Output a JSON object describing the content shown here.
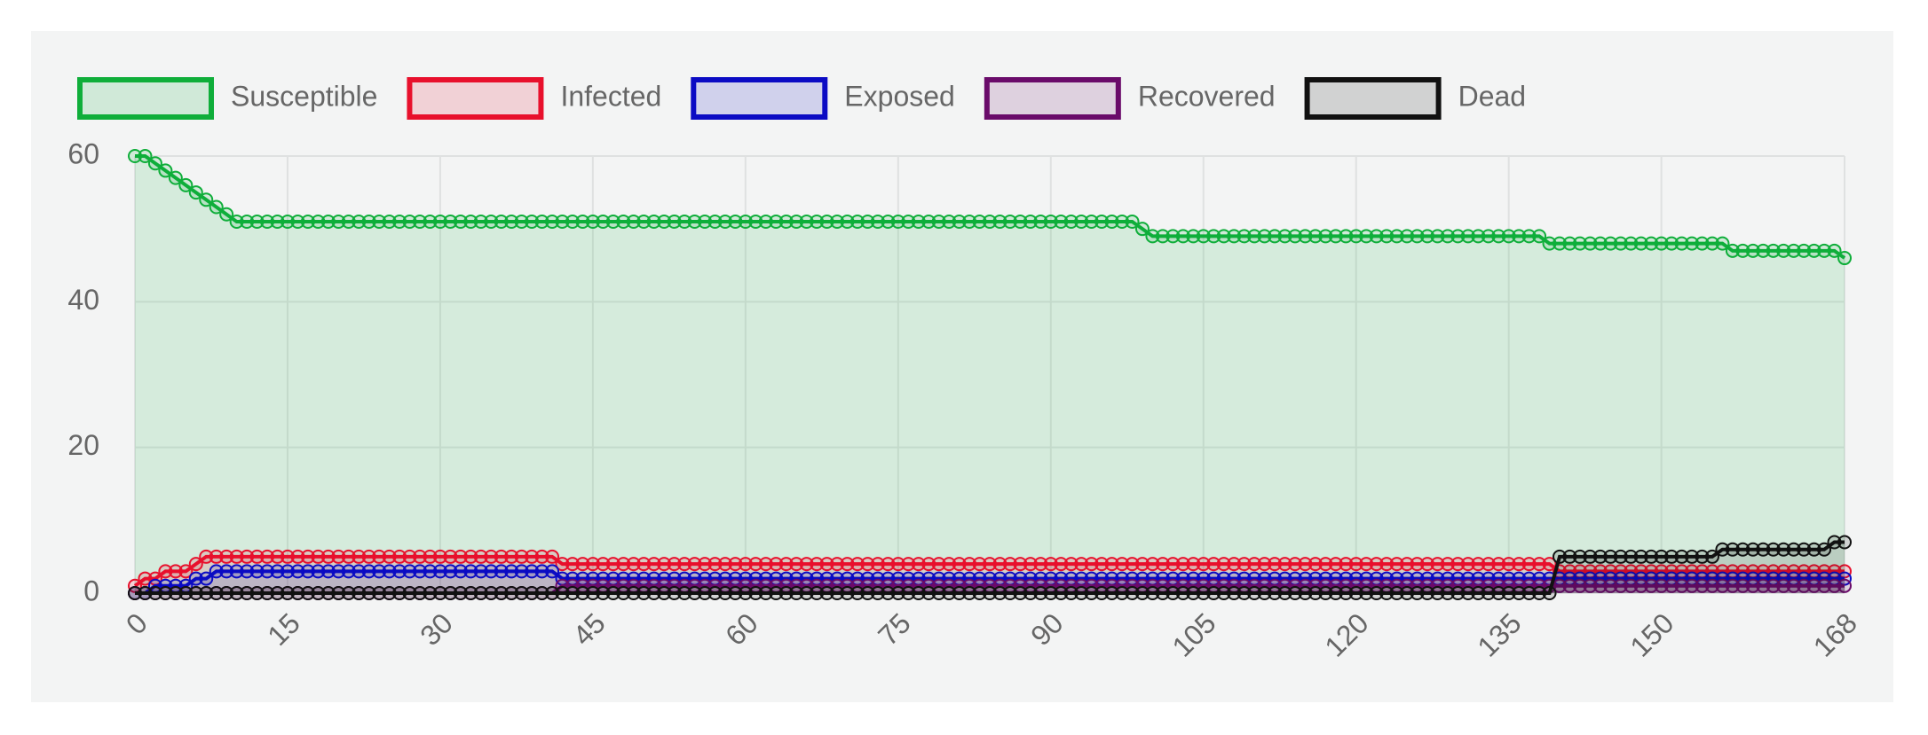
{
  "chart_data": {
    "type": "line",
    "x": [
      0,
      1,
      2,
      3,
      4,
      5,
      6,
      7,
      8,
      9,
      10,
      11,
      12,
      13,
      14,
      15,
      16,
      17,
      18,
      19,
      20,
      21,
      22,
      23,
      24,
      25,
      26,
      27,
      28,
      29,
      30,
      31,
      32,
      33,
      34,
      35,
      36,
      37,
      38,
      39,
      40,
      41,
      42,
      43,
      44,
      45,
      46,
      47,
      48,
      49,
      50,
      51,
      52,
      53,
      54,
      55,
      56,
      57,
      58,
      59,
      60,
      61,
      62,
      63,
      64,
      65,
      66,
      67,
      68,
      69,
      70,
      71,
      72,
      73,
      74,
      75,
      76,
      77,
      78,
      79,
      80,
      81,
      82,
      83,
      84,
      85,
      86,
      87,
      88,
      89,
      90,
      91,
      92,
      93,
      94,
      95,
      96,
      97,
      98,
      99,
      100,
      101,
      102,
      103,
      104,
      105,
      106,
      107,
      108,
      109,
      110,
      111,
      112,
      113,
      114,
      115,
      116,
      117,
      118,
      119,
      120,
      121,
      122,
      123,
      124,
      125,
      126,
      127,
      128,
      129,
      130,
      131,
      132,
      133,
      134,
      135,
      136,
      137,
      138,
      139,
      140,
      141,
      142,
      143,
      144,
      145,
      146,
      147,
      148,
      149,
      150,
      151,
      152,
      153,
      154,
      155,
      156,
      157,
      158,
      159,
      160,
      161,
      162,
      163,
      164,
      165,
      166,
      167,
      168
    ],
    "series": [
      {
        "name": "Susceptible",
        "color": "#0fae3a",
        "values": [
          60,
          60,
          59,
          58,
          57,
          56,
          55,
          54,
          53,
          52,
          51,
          51,
          51,
          51,
          51,
          51,
          51,
          51,
          51,
          51,
          51,
          51,
          51,
          51,
          51,
          51,
          51,
          51,
          51,
          51,
          51,
          51,
          51,
          51,
          51,
          51,
          51,
          51,
          51,
          51,
          51,
          51,
          51,
          51,
          51,
          51,
          51,
          51,
          51,
          51,
          51,
          51,
          51,
          51,
          51,
          51,
          51,
          51,
          51,
          51,
          51,
          51,
          51,
          51,
          51,
          51,
          51,
          51,
          51,
          51,
          51,
          51,
          51,
          51,
          51,
          51,
          51,
          51,
          51,
          51,
          51,
          51,
          51,
          51,
          51,
          51,
          51,
          51,
          51,
          51,
          51,
          51,
          51,
          51,
          51,
          51,
          51,
          51,
          51,
          50,
          49,
          49,
          49,
          49,
          49,
          49,
          49,
          49,
          49,
          49,
          49,
          49,
          49,
          49,
          49,
          49,
          49,
          49,
          49,
          49,
          49,
          49,
          49,
          49,
          49,
          49,
          49,
          49,
          49,
          49,
          49,
          49,
          49,
          49,
          49,
          49,
          49,
          49,
          49,
          48,
          48,
          48,
          48,
          48,
          48,
          48,
          48,
          48,
          48,
          48,
          48,
          48,
          48,
          48,
          48,
          48,
          48,
          47,
          47,
          47,
          47,
          47,
          47,
          47,
          47,
          47,
          47,
          47,
          46
        ]
      },
      {
        "name": "Infected",
        "color": "#e8102c",
        "values": [
          1,
          2,
          2,
          3,
          3,
          3,
          4,
          5,
          5,
          5,
          5,
          5,
          5,
          5,
          5,
          5,
          5,
          5,
          5,
          5,
          5,
          5,
          5,
          5,
          5,
          5,
          5,
          5,
          5,
          5,
          5,
          5,
          5,
          5,
          5,
          5,
          5,
          5,
          5,
          5,
          5,
          5,
          4,
          4,
          4,
          4,
          4,
          4,
          4,
          4,
          4,
          4,
          4,
          4,
          4,
          4,
          4,
          4,
          4,
          4,
          4,
          4,
          4,
          4,
          4,
          4,
          4,
          4,
          4,
          4,
          4,
          4,
          4,
          4,
          4,
          4,
          4,
          4,
          4,
          4,
          4,
          4,
          4,
          4,
          4,
          4,
          4,
          4,
          4,
          4,
          4,
          4,
          4,
          4,
          4,
          4,
          4,
          4,
          4,
          4,
          4,
          4,
          4,
          4,
          4,
          4,
          4,
          4,
          4,
          4,
          4,
          4,
          4,
          4,
          4,
          4,
          4,
          4,
          4,
          4,
          4,
          4,
          4,
          4,
          4,
          4,
          4,
          4,
          4,
          4,
          4,
          4,
          4,
          4,
          4,
          4,
          4,
          4,
          4,
          4,
          3,
          3,
          3,
          3,
          3,
          3,
          3,
          3,
          3,
          3,
          3,
          3,
          3,
          3,
          3,
          3,
          3,
          3,
          3,
          3,
          3,
          3,
          3,
          3,
          3,
          3,
          3,
          3,
          3
        ]
      },
      {
        "name": "Exposed",
        "color": "#0b0bc4",
        "values": [
          0,
          0,
          1,
          1,
          1,
          1,
          2,
          2,
          3,
          3,
          3,
          3,
          3,
          3,
          3,
          3,
          3,
          3,
          3,
          3,
          3,
          3,
          3,
          3,
          3,
          3,
          3,
          3,
          3,
          3,
          3,
          3,
          3,
          3,
          3,
          3,
          3,
          3,
          3,
          3,
          3,
          3,
          2,
          2,
          2,
          2,
          2,
          2,
          2,
          2,
          2,
          2,
          2,
          2,
          2,
          2,
          2,
          2,
          2,
          2,
          2,
          2,
          2,
          2,
          2,
          2,
          2,
          2,
          2,
          2,
          2,
          2,
          2,
          2,
          2,
          2,
          2,
          2,
          2,
          2,
          2,
          2,
          2,
          2,
          2,
          2,
          2,
          2,
          2,
          2,
          2,
          2,
          2,
          2,
          2,
          2,
          2,
          2,
          2,
          2,
          2,
          2,
          2,
          2,
          2,
          2,
          2,
          2,
          2,
          2,
          2,
          2,
          2,
          2,
          2,
          2,
          2,
          2,
          2,
          2,
          2,
          2,
          2,
          2,
          2,
          2,
          2,
          2,
          2,
          2,
          2,
          2,
          2,
          2,
          2,
          2,
          2,
          2,
          2,
          2,
          2,
          2,
          2,
          2,
          2,
          2,
          2,
          2,
          2,
          2,
          2,
          2,
          2,
          2,
          2,
          2,
          2,
          2,
          2,
          2,
          2,
          2,
          2,
          2,
          2,
          2,
          2,
          2,
          2
        ]
      },
      {
        "name": "Recovered",
        "color": "#6a0b6a",
        "values": [
          0,
          0,
          0,
          0,
          0,
          0,
          0,
          0,
          0,
          0,
          0,
          0,
          0,
          0,
          0,
          0,
          0,
          0,
          0,
          0,
          0,
          0,
          0,
          0,
          0,
          0,
          0,
          0,
          0,
          0,
          0,
          0,
          0,
          0,
          0,
          0,
          0,
          0,
          0,
          0,
          0,
          0,
          1,
          1,
          1,
          1,
          1,
          1,
          1,
          1,
          1,
          1,
          1,
          1,
          1,
          1,
          1,
          1,
          1,
          1,
          1,
          1,
          1,
          1,
          1,
          1,
          1,
          1,
          1,
          1,
          1,
          1,
          1,
          1,
          1,
          1,
          1,
          1,
          1,
          1,
          1,
          1,
          1,
          1,
          1,
          1,
          1,
          1,
          1,
          1,
          1,
          1,
          1,
          1,
          1,
          1,
          1,
          1,
          1,
          1,
          1,
          1,
          1,
          1,
          1,
          1,
          1,
          1,
          1,
          1,
          1,
          1,
          1,
          1,
          1,
          1,
          1,
          1,
          1,
          1,
          1,
          1,
          1,
          1,
          1,
          1,
          1,
          1,
          1,
          1,
          1,
          1,
          1,
          1,
          1,
          1,
          1,
          1,
          1,
          1,
          1,
          1,
          1,
          1,
          1,
          1,
          1,
          1,
          1,
          1,
          1,
          1,
          1,
          1,
          1,
          1,
          1,
          1,
          1,
          1,
          1,
          1,
          1,
          1,
          1,
          1,
          1,
          1,
          1
        ]
      },
      {
        "name": "Dead",
        "color": "#111111",
        "values": [
          0,
          0,
          0,
          0,
          0,
          0,
          0,
          0,
          0,
          0,
          0,
          0,
          0,
          0,
          0,
          0,
          0,
          0,
          0,
          0,
          0,
          0,
          0,
          0,
          0,
          0,
          0,
          0,
          0,
          0,
          0,
          0,
          0,
          0,
          0,
          0,
          0,
          0,
          0,
          0,
          0,
          0,
          0,
          0,
          0,
          0,
          0,
          0,
          0,
          0,
          0,
          0,
          0,
          0,
          0,
          0,
          0,
          0,
          0,
          0,
          0,
          0,
          0,
          0,
          0,
          0,
          0,
          0,
          0,
          0,
          0,
          0,
          0,
          0,
          0,
          0,
          0,
          0,
          0,
          0,
          0,
          0,
          0,
          0,
          0,
          0,
          0,
          0,
          0,
          0,
          0,
          0,
          0,
          0,
          0,
          0,
          0,
          0,
          0,
          0,
          0,
          0,
          0,
          0,
          0,
          0,
          0,
          0,
          0,
          0,
          0,
          0,
          0,
          0,
          0,
          0,
          0,
          0,
          0,
          0,
          0,
          0,
          0,
          0,
          0,
          0,
          0,
          0,
          0,
          0,
          0,
          0,
          0,
          0,
          0,
          0,
          0,
          0,
          0,
          0,
          5,
          5,
          5,
          5,
          5,
          5,
          5,
          5,
          5,
          5,
          5,
          5,
          5,
          5,
          5,
          5,
          6,
          6,
          6,
          6,
          6,
          6,
          6,
          6,
          6,
          6,
          6,
          7,
          7
        ]
      }
    ],
    "xlim": [
      0,
      168
    ],
    "xticks": [
      0,
      15,
      30,
      45,
      60,
      75,
      90,
      105,
      120,
      135,
      150,
      168
    ],
    "ylim": [
      0,
      60
    ],
    "yticks": [
      0,
      20,
      40,
      60
    ],
    "grid": true,
    "legend": "top"
  }
}
